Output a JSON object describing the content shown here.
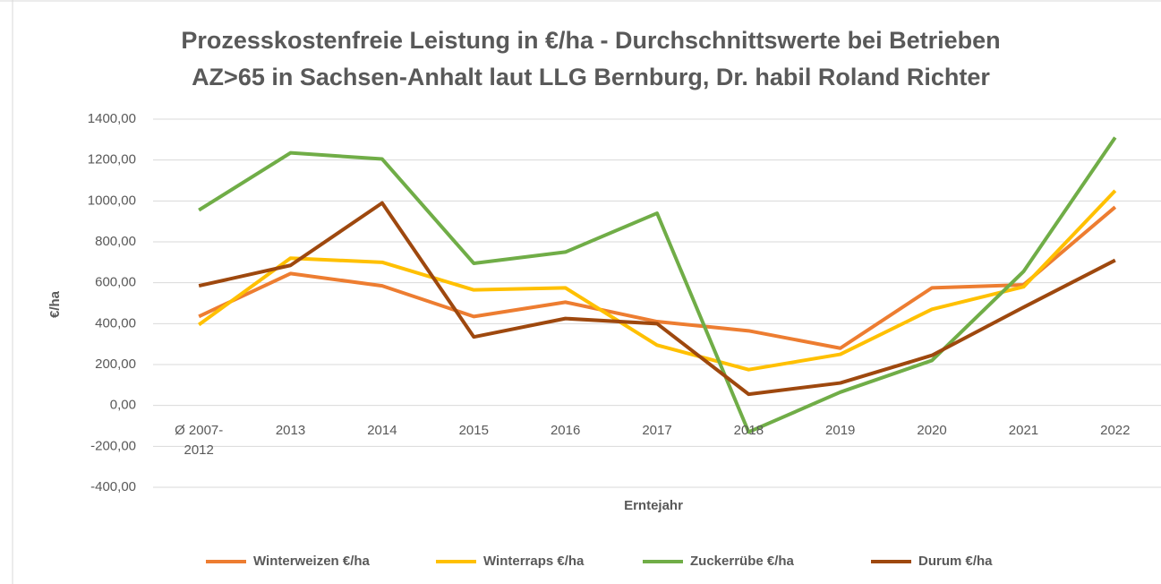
{
  "chart_data": {
    "type": "line",
    "title": [
      "Prozesskostenfreie Leistung in €/ha - Durchschnittswerte bei Betrieben",
      "AZ>65 in Sachsen-Anhalt laut LLG Bernburg, Dr. habil Roland Richter"
    ],
    "x_label": "Erntejahr",
    "y_label": "€/ha",
    "categories": [
      "Ø 2007-2012",
      "2013",
      "2014",
      "2015",
      "2016",
      "2017",
      "2018",
      "2019",
      "2020",
      "2021",
      "2022"
    ],
    "series": [
      {
        "name": "Winterweizen €/ha",
        "color": "#ed7d31",
        "values": [
          435,
          645,
          585,
          435,
          505,
          410,
          365,
          280,
          575,
          590,
          970
        ]
      },
      {
        "name": "Winterraps €/ha",
        "color": "#ffc000",
        "values": [
          395,
          720,
          700,
          565,
          575,
          295,
          175,
          250,
          470,
          580,
          1050
        ]
      },
      {
        "name": "Zuckerrübe €/ha",
        "color": "#70ad47",
        "values": [
          955,
          1235,
          1205,
          695,
          750,
          940,
          -130,
          65,
          220,
          655,
          1310
        ]
      },
      {
        "name": "Durum €/ha",
        "color": "#9e480e",
        "values": [
          585,
          685,
          990,
          335,
          425,
          400,
          55,
          110,
          245,
          480,
          710
        ]
      }
    ],
    "ylim": [
      -400,
      1400
    ],
    "yticks": [
      {
        "value": -400,
        "label": "-400,00"
      },
      {
        "value": -200,
        "label": "-200,00"
      },
      {
        "value": 0,
        "label": "0,00"
      },
      {
        "value": 200,
        "label": "200,00"
      },
      {
        "value": 400,
        "label": "400,00"
      },
      {
        "value": 600,
        "label": "600,00"
      },
      {
        "value": 800,
        "label": "800,00"
      },
      {
        "value": 1000,
        "label": "1000,00"
      },
      {
        "value": 1200,
        "label": "1200,00"
      },
      {
        "value": 1400,
        "label": "1400,00"
      }
    ],
    "grid": true,
    "legend": "bottom"
  }
}
